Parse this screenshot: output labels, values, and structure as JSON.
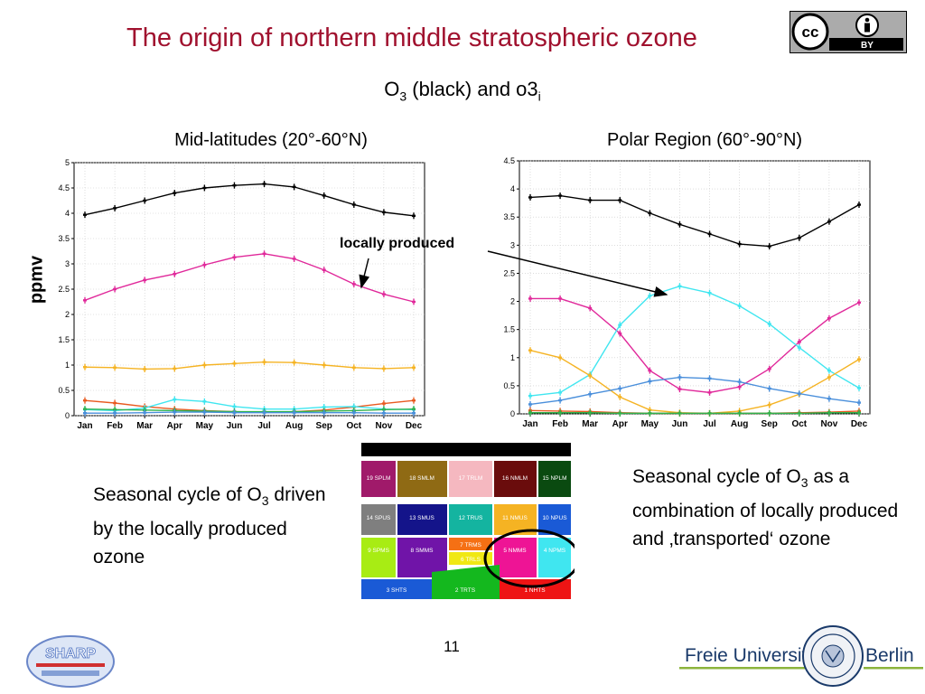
{
  "title": "The origin of northern middle stratospheric ozone",
  "subtitle_main": "O",
  "subtitle_sub1": "3",
  "subtitle_mid": " (black) and o3",
  "subtitle_sub2": "i",
  "badge": {
    "cc_text": "cc",
    "by_text": "BY"
  },
  "y_axis_label": "ppmv",
  "annotation": "locally produced",
  "left_text": {
    "pre": "Seasonal cycle of O",
    "sub": "3",
    "post": " driven by the locally produced ozone"
  },
  "right_text": {
    "pre": "Seasonal cycle of O",
    "sub": "3",
    "post": " as a combination of locally produced and ‚transported‘ ozone"
  },
  "page_number": "11",
  "footer": {
    "university": "Freie Universität",
    "city": "Berlin",
    "sharp": "SHARP"
  },
  "colors": {
    "title": "#a0112e",
    "black": "#000000",
    "magenta": "#e0289a",
    "orange": "#f5b323",
    "cyan": "#40e6f0",
    "blue": "#4a8fdb",
    "red": "#e85a20",
    "green": "#2fb24c"
  },
  "region_map": {
    "labels": [
      "19 SPLM",
      "18 SMLM",
      "17 TRLM",
      "16 NMLM",
      "15 NPLM",
      "14 SPUS",
      "13 SMUS",
      "12 TRUS",
      "11 NMUS",
      "10 NPUS",
      "9 SPMS",
      "8 SMMS",
      "7 TRMS",
      "6 TRLS",
      "5 NMMS",
      "4 NPMS",
      "3 SHTS",
      "2 TRTS",
      "1 NHTS"
    ]
  },
  "chart_data": [
    {
      "type": "line",
      "title": "Mid-latitudes (20°-60°N)",
      "ylabel": "ppmv",
      "categories": [
        "Jan",
        "Feb",
        "Mar",
        "Apr",
        "May",
        "Jun",
        "Jul",
        "Aug",
        "Sep",
        "Oct",
        "Nov",
        "Dec"
      ],
      "ylim": [
        0,
        5
      ],
      "yticks": [
        "0",
        "0.5",
        "1",
        "1.5",
        "2",
        "2.5",
        "3",
        "3.5",
        "4",
        "4.5",
        "5"
      ],
      "series": [
        {
          "color": "#000000",
          "values": [
            3.97,
            4.1,
            4.25,
            4.4,
            4.5,
            4.55,
            4.58,
            4.52,
            4.35,
            4.17,
            4.02,
            3.95
          ]
        },
        {
          "color": "#e0289a",
          "values": [
            2.28,
            2.5,
            2.68,
            2.8,
            2.98,
            3.13,
            3.2,
            3.1,
            2.88,
            2.6,
            2.4,
            2.25
          ]
        },
        {
          "color": "#f5b323",
          "values": [
            0.96,
            0.95,
            0.92,
            0.93,
            1.0,
            1.03,
            1.06,
            1.05,
            1.0,
            0.95,
            0.93,
            0.95
          ]
        },
        {
          "color": "#e85a20",
          "values": [
            0.3,
            0.25,
            0.18,
            0.13,
            0.1,
            0.08,
            0.07,
            0.08,
            0.11,
            0.17,
            0.24,
            0.3
          ]
        },
        {
          "color": "#40e6f0",
          "values": [
            0.12,
            0.1,
            0.15,
            0.32,
            0.28,
            0.18,
            0.13,
            0.13,
            0.17,
            0.18,
            0.13,
            0.12
          ]
        },
        {
          "color": "#2fb24c",
          "values": [
            0.13,
            0.12,
            0.11,
            0.1,
            0.09,
            0.08,
            0.08,
            0.08,
            0.09,
            0.1,
            0.12,
            0.13
          ]
        },
        {
          "color": "#4a8fdb",
          "values": [
            0.05,
            0.05,
            0.06,
            0.07,
            0.07,
            0.06,
            0.06,
            0.06,
            0.06,
            0.06,
            0.05,
            0.05
          ]
        }
      ]
    },
    {
      "type": "line",
      "title": "Polar Region (60°-90°N)",
      "categories": [
        "Jan",
        "Feb",
        "Mar",
        "Apr",
        "May",
        "Jun",
        "Jul",
        "Aug",
        "Sep",
        "Oct",
        "Nov",
        "Dec"
      ],
      "ylim": [
        0,
        4.5
      ],
      "yticks": [
        "0",
        "0.5",
        "1",
        "1.5",
        "2",
        "2.5",
        "3",
        "3.5",
        "4",
        "4.5"
      ],
      "series": [
        {
          "color": "#000000",
          "values": [
            3.85,
            3.88,
            3.8,
            3.8,
            3.57,
            3.37,
            3.2,
            3.02,
            2.98,
            3.13,
            3.42,
            3.72
          ]
        },
        {
          "color": "#e0289a",
          "values": [
            2.05,
            2.05,
            1.88,
            1.43,
            0.77,
            0.44,
            0.38,
            0.48,
            0.8,
            1.28,
            1.7,
            1.98
          ]
        },
        {
          "color": "#40e6f0",
          "values": [
            0.32,
            0.38,
            0.7,
            1.58,
            2.1,
            2.27,
            2.15,
            1.92,
            1.6,
            1.18,
            0.77,
            0.46
          ]
        },
        {
          "color": "#f5b323",
          "values": [
            1.13,
            1.0,
            0.68,
            0.3,
            0.07,
            0.02,
            0.01,
            0.05,
            0.16,
            0.35,
            0.65,
            0.97
          ]
        },
        {
          "color": "#4a8fdb",
          "values": [
            0.17,
            0.24,
            0.35,
            0.45,
            0.58,
            0.65,
            0.63,
            0.57,
            0.45,
            0.36,
            0.27,
            0.2
          ]
        },
        {
          "color": "#e85a20",
          "values": [
            0.06,
            0.05,
            0.04,
            0.02,
            0.01,
            0.01,
            0.01,
            0.01,
            0.01,
            0.02,
            0.03,
            0.05
          ]
        },
        {
          "color": "#2fb24c",
          "values": [
            0.02,
            0.02,
            0.02,
            0.01,
            0.01,
            0.01,
            0.01,
            0.01,
            0.01,
            0.01,
            0.02,
            0.02
          ]
        }
      ]
    }
  ]
}
